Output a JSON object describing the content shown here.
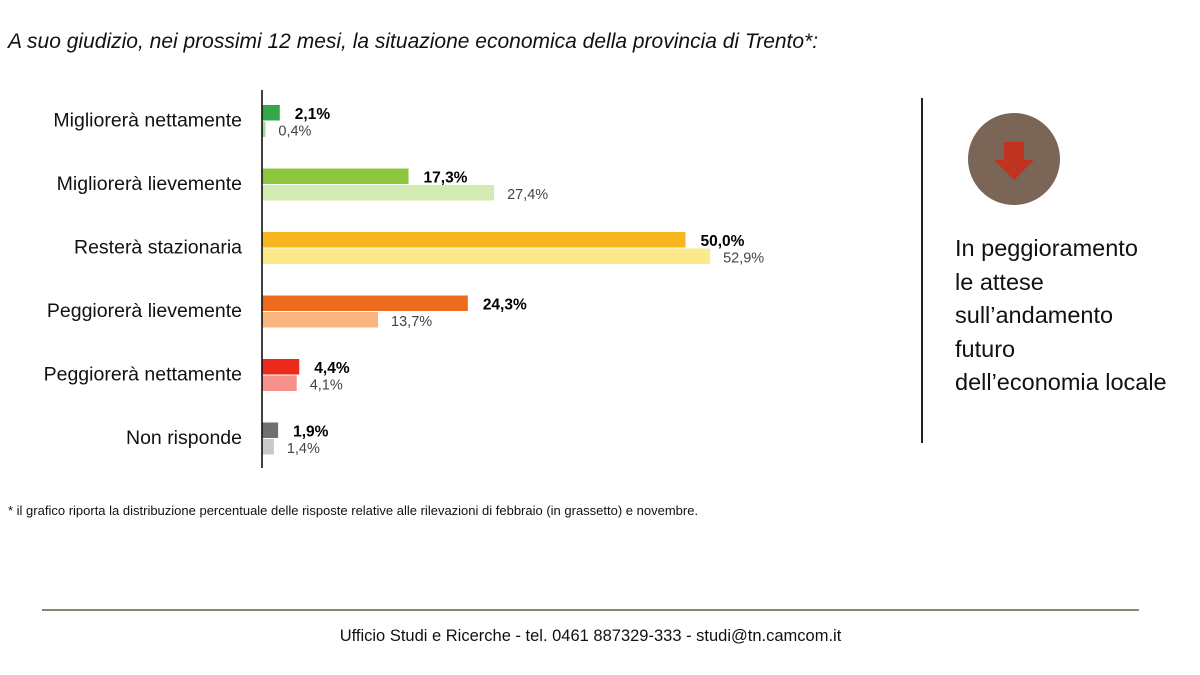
{
  "question": "A suo giudizio, nei prossimi 12 mesi, la situazione economica della provincia di Trento*:",
  "chart_data": {
    "type": "bar",
    "orientation": "horizontal",
    "title": "A suo giudizio, nei prossimi 12 mesi, la situazione economica della provincia di Trento*:",
    "categories": [
      "Migliorerà nettamente",
      "Migliorerà lievemente",
      "Resterà stazionaria",
      "Peggiorerà lievemente",
      "Peggiorerà nettamente",
      "Non risponde"
    ],
    "series": [
      {
        "name": "febbraio",
        "bold": true,
        "values": [
          2.1,
          17.3,
          50.0,
          24.3,
          4.4,
          1.9
        ],
        "labels": [
          "2,1%",
          "17,3%",
          "50,0%",
          "24,3%",
          "4,4%",
          "1,9%"
        ],
        "colors": [
          "#31a94a",
          "#8cc63f",
          "#f7b51f",
          "#ee6b1e",
          "#ec2a1c",
          "#707070"
        ]
      },
      {
        "name": "novembre",
        "bold": false,
        "values": [
          0.4,
          27.4,
          52.9,
          13.7,
          4.1,
          1.4
        ],
        "labels": [
          "0,4%",
          "27,4%",
          "52,9%",
          "13,7%",
          "4,1%",
          "1,4%"
        ],
        "colors": [
          "#9bdaa2",
          "#d2ebb3",
          "#fbe98a",
          "#f8b57e",
          "#f6918c",
          "#c9c9c9"
        ]
      }
    ],
    "xlim": [
      0,
      100
    ],
    "grid": false,
    "legend": "none"
  },
  "side_panel": {
    "icon": "down-arrow-icon",
    "circle_color": "#7a6556",
    "arrow_color": "#c0341f",
    "lines": [
      "In peggioramento",
      "le attese",
      "sull’andamento",
      "futuro",
      "dell’economia locale"
    ]
  },
  "footnote": "* il grafico riporta la distribuzione percentuale delle risposte relative alle rilevazioni di febbraio (in grassetto) e novembre.",
  "footer": "Ufficio Studi e Ricerche - tel. 0461 887329-333 - studi@tn.camcom.it"
}
